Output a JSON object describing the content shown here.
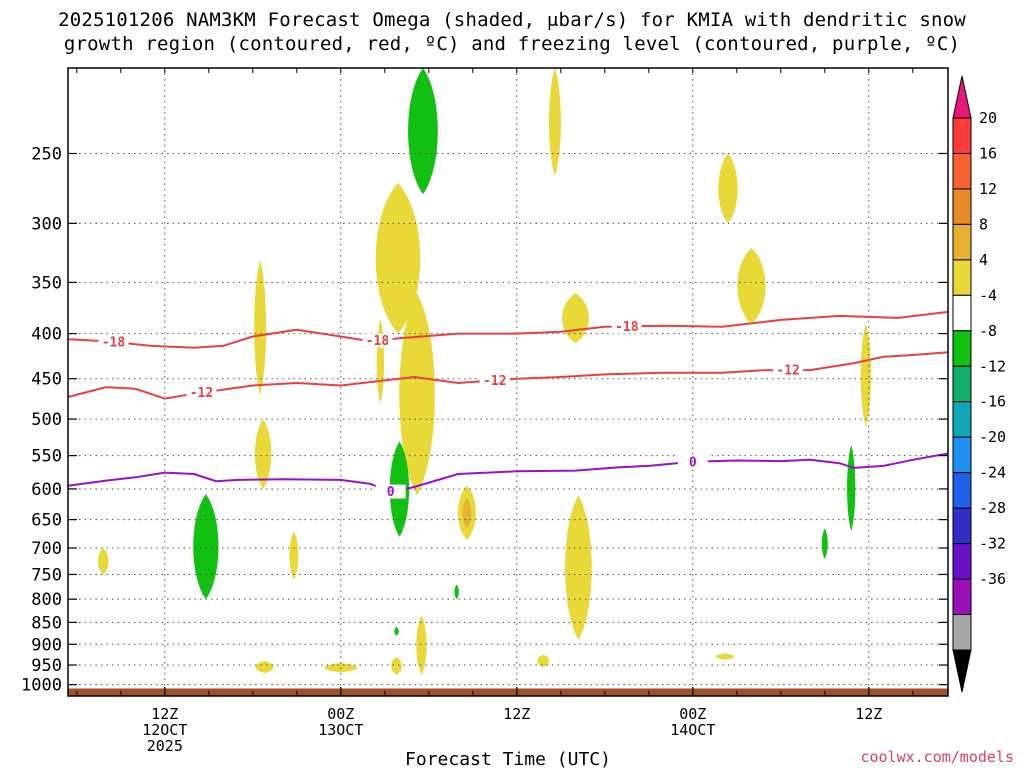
{
  "chart_data": {
    "type": "heatmap",
    "title_line1": "2025101206 NAM3KM Forecast Omega (shaded, μbar/s) for KMIA with dendritic snow",
    "title_line2": "growth region (contoured, red, ºC) and freezing level (contoured, purple, ºC)",
    "xlabel": "Forecast Time (UTC)",
    "ylabel": "",
    "credit": "coolwx.com/models",
    "x_ticks": [
      {
        "hour": 6,
        "lines": [
          "12Z",
          "12OCT",
          "2025"
        ]
      },
      {
        "hour": 18,
        "lines": [
          "00Z",
          "13OCT"
        ]
      },
      {
        "hour": 30,
        "lines": [
          "12Z"
        ]
      },
      {
        "hour": 42,
        "lines": [
          "00Z",
          "14OCT"
        ]
      },
      {
        "hour": 54,
        "lines": [
          "12Z"
        ]
      }
    ],
    "x_range": [
      -0.6,
      59.4
    ],
    "y_ticks": [
      250,
      300,
      350,
      400,
      450,
      500,
      550,
      600,
      650,
      700,
      750,
      800,
      850,
      900,
      950,
      1000
    ],
    "y_range_hPa": [
      200,
      1030
    ],
    "colorbar": {
      "labels": [
        "20",
        "16",
        "12",
        "8",
        "4",
        "-4",
        "-8",
        "-12",
        "-16",
        "-20",
        "-24",
        "-28",
        "-32",
        "-36"
      ],
      "colors": [
        "#ff3a3a",
        "#f8622e",
        "#e88a25",
        "#e6b030",
        "#e8d838",
        "#ffffff",
        "#12c012",
        "#10b06a",
        "#10a8b8",
        "#1e90f0",
        "#2060e8",
        "#3030c8",
        "#6a10c8",
        "#9a10b8",
        "#a8a8a8"
      ],
      "top_arrow_color": "#e8187a",
      "bottom_arrow_color": "#000000"
    },
    "contours": [
      {
        "name": "dgz-minus-18",
        "color": "#e84040",
        "label": "-18",
        "label_hours": [
          2.5,
          20.5,
          37.5
        ],
        "points": [
          [
            -0.6,
            406
          ],
          [
            2,
            408
          ],
          [
            5,
            413
          ],
          [
            8,
            415
          ],
          [
            10,
            413
          ],
          [
            12,
            403
          ],
          [
            15,
            396
          ],
          [
            18,
            403
          ],
          [
            20,
            408
          ],
          [
            22,
            405
          ],
          [
            26,
            400
          ],
          [
            30,
            400
          ],
          [
            33,
            398
          ],
          [
            36,
            393
          ],
          [
            40,
            392
          ],
          [
            44,
            393
          ],
          [
            48,
            386
          ],
          [
            52,
            382
          ],
          [
            56,
            384
          ],
          [
            59.4,
            378
          ]
        ]
      },
      {
        "name": "dgz-minus-12",
        "color": "#e84040",
        "label": "-12",
        "label_hours": [
          8.5,
          28.5,
          48.5
        ],
        "points": [
          [
            -0.6,
            472
          ],
          [
            2,
            460
          ],
          [
            4,
            462
          ],
          [
            6,
            474
          ],
          [
            8,
            468
          ],
          [
            12,
            458
          ],
          [
            15,
            455
          ],
          [
            18,
            458
          ],
          [
            21,
            452
          ],
          [
            23,
            448
          ],
          [
            26,
            455
          ],
          [
            30,
            450
          ],
          [
            33,
            448
          ],
          [
            36,
            445
          ],
          [
            40,
            443
          ],
          [
            44,
            443
          ],
          [
            47,
            440
          ],
          [
            50,
            440
          ],
          [
            53,
            432
          ],
          [
            55,
            425
          ],
          [
            57,
            423
          ],
          [
            59.4,
            420
          ]
        ]
      },
      {
        "name": "freezing-level",
        "color": "#9a10c8",
        "label": "0",
        "label_hours": [
          21.4,
          42
        ],
        "points": [
          [
            -0.6,
            595
          ],
          [
            2,
            587
          ],
          [
            4,
            582
          ],
          [
            6,
            575
          ],
          [
            8,
            577
          ],
          [
            9.5,
            588
          ],
          [
            11,
            586
          ],
          [
            14,
            585
          ],
          [
            18,
            586
          ],
          [
            20,
            592
          ],
          [
            21.5,
            605
          ],
          [
            23,
            597
          ],
          [
            26,
            577
          ],
          [
            30,
            573
          ],
          [
            34,
            572
          ],
          [
            37,
            567
          ],
          [
            39,
            565
          ],
          [
            42,
            559
          ],
          [
            45,
            557
          ],
          [
            48,
            558
          ],
          [
            50,
            556
          ],
          [
            52,
            561
          ],
          [
            53,
            568
          ],
          [
            55,
            565
          ],
          [
            57,
            556
          ],
          [
            59.4,
            547
          ]
        ]
      }
    ],
    "omega_features": [
      {
        "name": "omega-pos-04h-725",
        "hour": 1.8,
        "hw": 0.35,
        "top": 700,
        "bottom": 750,
        "color": "#e8d838"
      },
      {
        "name": "omega-neg-09h-700",
        "hour": 8.8,
        "hw": 0.85,
        "top": 608,
        "bottom": 800,
        "color": "#12c012"
      },
      {
        "name": "omega-pos-13h-410",
        "hour": 12.5,
        "hw": 0.4,
        "top": 330,
        "bottom": 470,
        "color": "#e8d838"
      },
      {
        "name": "omega-pos-13h-555",
        "hour": 12.7,
        "hw": 0.55,
        "top": 500,
        "bottom": 600,
        "color": "#e8d838"
      },
      {
        "name": "omega-pos-15h-700",
        "hour": 14.8,
        "hw": 0.3,
        "top": 670,
        "bottom": 760,
        "color": "#e8d838"
      },
      {
        "name": "omega-pos-13h-955",
        "hour": 12.8,
        "hw": 0.6,
        "top": 940,
        "bottom": 970,
        "color": "#e8d838"
      },
      {
        "name": "omega-pos-19h-955",
        "hour": 18.0,
        "hw": 1.1,
        "top": 945,
        "bottom": 968,
        "color": "#e8d838"
      },
      {
        "name": "omega-pos-20h-430",
        "hour": 20.7,
        "hw": 0.25,
        "top": 385,
        "bottom": 480,
        "color": "#e8d838"
      },
      {
        "name": "omega-pos-22h-330",
        "hour": 21.9,
        "hw": 1.5,
        "top": 270,
        "bottom": 400,
        "color": "#e8d838"
      },
      {
        "name": "omega-pos-23h-470",
        "hour": 23.2,
        "hw": 1.2,
        "top": 360,
        "bottom": 610,
        "color": "#e8d838"
      },
      {
        "name": "omega-neg-22h-590",
        "hour": 22.0,
        "hw": 0.65,
        "top": 530,
        "bottom": 680,
        "color": "#12c012"
      },
      {
        "name": "omega-neg-22h-870",
        "hour": 21.8,
        "hw": 0.15,
        "top": 860,
        "bottom": 880,
        "color": "#12c012"
      },
      {
        "name": "omega-pos-22h-950",
        "hour": 21.8,
        "hw": 0.35,
        "top": 930,
        "bottom": 975,
        "color": "#e8d838"
      },
      {
        "name": "omega-neg-23h-230",
        "hour": 23.6,
        "hw": 1.0,
        "top": 200,
        "bottom": 278,
        "color": "#12c012"
      },
      {
        "name": "omega-pos-24h-880",
        "hour": 23.5,
        "hw": 0.35,
        "top": 835,
        "bottom": 975,
        "color": "#e8d838"
      },
      {
        "name": "omega-pos-27h-640",
        "hour": 26.6,
        "hw": 0.6,
        "top": 595,
        "bottom": 685,
        "color": "#e8d838"
      },
      {
        "name": "omega-pos-27h-640-core",
        "hour": 26.6,
        "hw": 0.3,
        "top": 615,
        "bottom": 665,
        "color": "#e6b030"
      },
      {
        "name": "omega-neg-26h-790",
        "hour": 25.9,
        "hw": 0.15,
        "top": 770,
        "bottom": 800,
        "color": "#12c012"
      },
      {
        "name": "omega-pos-32h-230",
        "hour": 32.6,
        "hw": 0.4,
        "top": 200,
        "bottom": 265,
        "color": "#e8d838"
      },
      {
        "name": "omega-pos-34h-390",
        "hour": 34.0,
        "hw": 0.9,
        "top": 360,
        "bottom": 410,
        "color": "#e8d838"
      },
      {
        "name": "omega-pos-35h-740",
        "hour": 34.2,
        "hw": 0.9,
        "top": 610,
        "bottom": 890,
        "color": "#e8d838"
      },
      {
        "name": "omega-pos-32h-940",
        "hour": 31.8,
        "hw": 0.4,
        "top": 925,
        "bottom": 955,
        "color": "#e8d838"
      },
      {
        "name": "omega-pos-44h-930",
        "hour": 44.2,
        "hw": 0.6,
        "top": 922,
        "bottom": 937,
        "color": "#e8d838"
      },
      {
        "name": "omega-pos-44h-275",
        "hour": 44.4,
        "hw": 0.65,
        "top": 250,
        "bottom": 300,
        "color": "#e8d838"
      },
      {
        "name": "omega-pos-46h-360",
        "hour": 46.0,
        "hw": 0.95,
        "top": 320,
        "bottom": 390,
        "color": "#e8d838"
      },
      {
        "name": "omega-neg-51h-690",
        "hour": 51.0,
        "hw": 0.2,
        "top": 665,
        "bottom": 720,
        "color": "#12c012"
      },
      {
        "name": "omega-neg-52h-600",
        "hour": 52.8,
        "hw": 0.28,
        "top": 535,
        "bottom": 670,
        "color": "#12c012"
      },
      {
        "name": "omega-pos-54h-450",
        "hour": 53.8,
        "hw": 0.35,
        "top": 390,
        "bottom": 510,
        "color": "#e8d838"
      }
    ],
    "terrain": {
      "color": "#a05028",
      "top_hPa": 1010
    }
  }
}
